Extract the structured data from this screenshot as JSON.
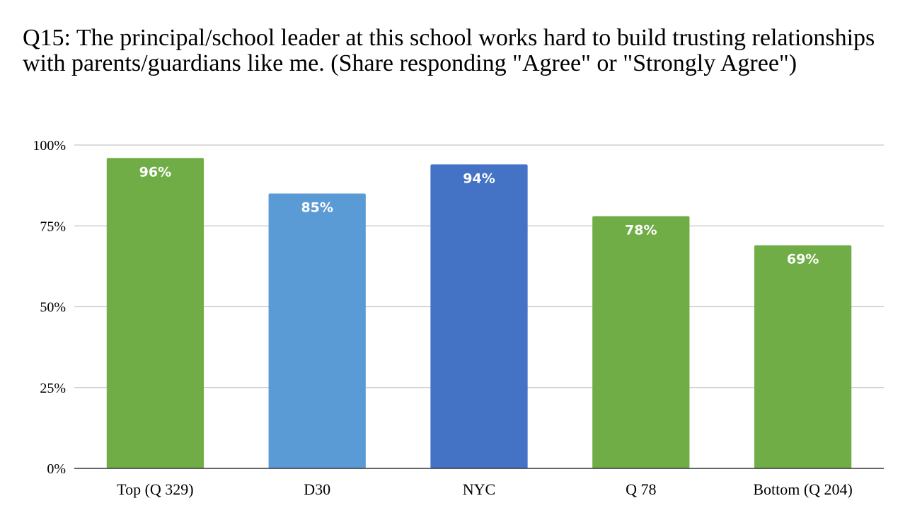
{
  "chart_data": {
    "type": "bar",
    "title": "Q15: The principal/school leader at this school works hard to build trusting relationships with parents/guardians like me. (Share responding \"Agree\" or \"Strongly Agree\")",
    "xlabel": "",
    "ylabel": "",
    "categories": [
      "Top (Q 329)",
      "D30",
      "NYC",
      "Q 78",
      "Bottom (Q 204)"
    ],
    "values": [
      96,
      85,
      94,
      78,
      69
    ],
    "data_labels": [
      "96%",
      "85%",
      "94%",
      "78%",
      "69%"
    ],
    "bar_colors": [
      "#70ad47",
      "#5b9bd5",
      "#4472c4",
      "#70ad47",
      "#70ad47"
    ],
    "ylim": [
      0,
      100
    ],
    "yticks": [
      0,
      25,
      50,
      75,
      100
    ],
    "ytick_labels": [
      "0%",
      "25%",
      "50%",
      "75%",
      "100%"
    ],
    "grid": true,
    "legend": "none"
  }
}
